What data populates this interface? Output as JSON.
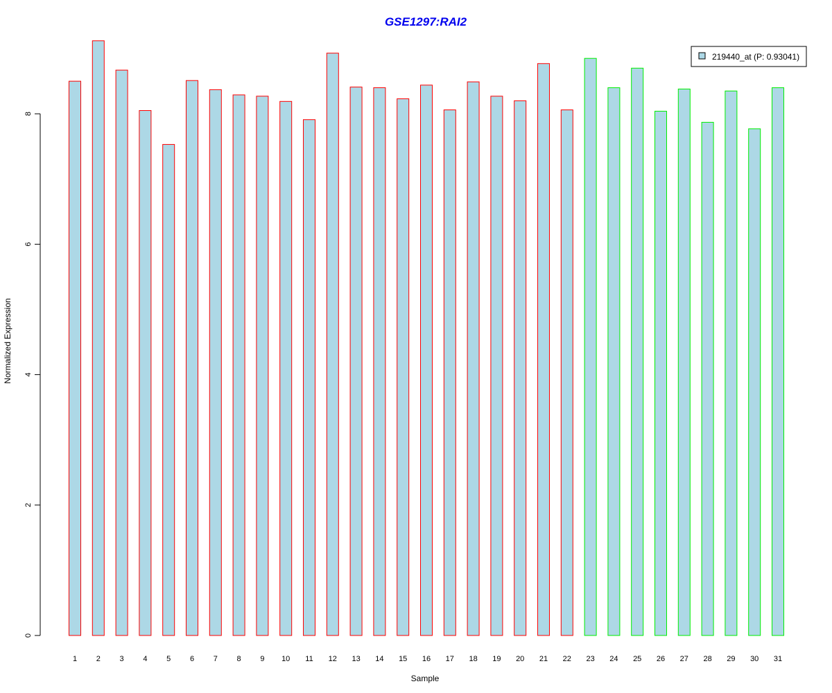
{
  "colors": {
    "title": "#0000ee",
    "bar_fill": "#add8e6",
    "group1_border": "#ff0000",
    "group2_border": "#00ee00",
    "axis": "#000000"
  },
  "chart_data": {
    "type": "bar",
    "title": "GSE1297:RAI2",
    "xlabel": "Sample",
    "ylabel": "Normalized Expression",
    "ylim": [
      0,
      9.2
    ],
    "yticks": [
      0,
      2,
      4,
      6,
      8
    ],
    "grid": false,
    "legend_position": "top-right",
    "categories": [
      "1",
      "2",
      "3",
      "4",
      "5",
      "6",
      "7",
      "8",
      "9",
      "10",
      "11",
      "12",
      "13",
      "14",
      "15",
      "16",
      "17",
      "18",
      "19",
      "20",
      "21",
      "22",
      "23",
      "24",
      "25",
      "26",
      "27",
      "28",
      "29",
      "30",
      "31"
    ],
    "series": [
      {
        "name": "219440_at (P: 0.93041)",
        "values": [
          8.5,
          9.12,
          8.67,
          8.05,
          7.53,
          8.51,
          8.37,
          8.29,
          8.27,
          8.19,
          7.91,
          8.93,
          8.41,
          8.4,
          8.23,
          8.44,
          8.06,
          8.49,
          8.27,
          8.2,
          8.77,
          8.06,
          8.85,
          8.4,
          8.7,
          8.04,
          8.38,
          7.87,
          8.35,
          7.77,
          8.4
        ],
        "groups": [
          1,
          1,
          1,
          1,
          1,
          1,
          1,
          1,
          1,
          1,
          1,
          1,
          1,
          1,
          1,
          1,
          1,
          1,
          1,
          1,
          1,
          1,
          2,
          2,
          2,
          2,
          2,
          2,
          2,
          2,
          2
        ]
      }
    ]
  }
}
